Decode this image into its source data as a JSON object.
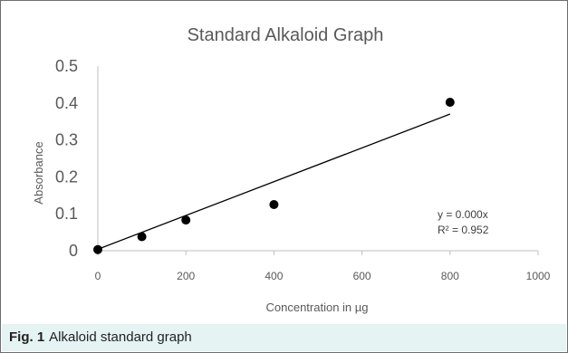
{
  "chart_data": {
    "type": "scatter",
    "title": "Standard Alkaloid Graph",
    "xlabel": "Concentration in µg",
    "ylabel": "Absorbance",
    "xlim": [
      0,
      1000
    ],
    "ylim": [
      0,
      0.5
    ],
    "x_ticks": [
      0,
      200,
      400,
      600,
      800,
      1000
    ],
    "y_ticks": [
      0,
      0.1,
      0.2,
      0.3,
      0.4,
      0.5
    ],
    "grid": false,
    "series": [
      {
        "points": [
          {
            "x": 0,
            "y": 0.003
          },
          {
            "x": 100,
            "y": 0.038
          },
          {
            "x": 200,
            "y": 0.083
          },
          {
            "x": 400,
            "y": 0.125
          },
          {
            "x": 800,
            "y": 0.402
          }
        ]
      }
    ],
    "trendline": {
      "type": "linear",
      "x_range": [
        0,
        800
      ],
      "y_range": [
        0.004,
        0.37
      ],
      "equation": "y = 0.000x",
      "r_squared": "R² = 0.952"
    }
  },
  "caption": {
    "label": "Fig. 1",
    "text": "Alkaloid standard graph"
  }
}
